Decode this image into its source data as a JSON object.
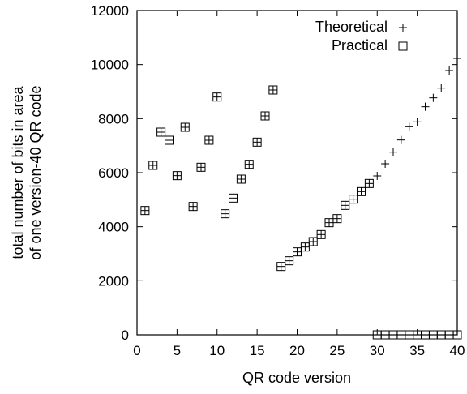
{
  "chart_data": {
    "type": "scatter",
    "xlabel": "QR code version",
    "ylabel_lines": [
      "total number of bits in area",
      "of one version-40 QR code"
    ],
    "xlim": [
      0,
      40
    ],
    "ylim": [
      0,
      12000
    ],
    "x_ticks": [
      0,
      5,
      10,
      15,
      20,
      25,
      30,
      35,
      40
    ],
    "y_ticks": [
      0,
      2000,
      4000,
      6000,
      8000,
      10000,
      12000
    ],
    "x_tick_labels": [
      "0",
      "5",
      "10",
      "15",
      "20",
      "25",
      "30",
      "35",
      "40"
    ],
    "y_tick_labels": [
      "0",
      "2000",
      "4000",
      "6000",
      "8000",
      "10000",
      "12000"
    ],
    "grid": false,
    "legend_position": "top-right",
    "series": [
      {
        "name": "Theoretical",
        "marker": "plus",
        "x": [
          1,
          2,
          3,
          4,
          5,
          6,
          7,
          8,
          9,
          10,
          11,
          12,
          13,
          14,
          15,
          16,
          17,
          18,
          19,
          20,
          21,
          22,
          23,
          24,
          25,
          26,
          27,
          28,
          29,
          30,
          31,
          32,
          33,
          34,
          35,
          36,
          37,
          38,
          39,
          40
        ],
        "y": [
          4600,
          6270,
          7500,
          7200,
          5890,
          7680,
          4750,
          6200,
          7200,
          8800,
          4480,
          5060,
          5760,
          6310,
          7130,
          8100,
          9060,
          2530,
          2740,
          3070,
          3250,
          3450,
          3710,
          4150,
          4300,
          4790,
          5020,
          5300,
          5600,
          5880,
          6330,
          6760,
          7210,
          7700,
          7880,
          8440,
          8770,
          9130,
          9780,
          10230
        ]
      },
      {
        "name": "Practical",
        "marker": "square",
        "x": [
          1,
          2,
          3,
          4,
          5,
          6,
          7,
          8,
          9,
          10,
          11,
          12,
          13,
          14,
          15,
          16,
          17,
          18,
          19,
          20,
          21,
          22,
          23,
          24,
          25,
          26,
          27,
          28,
          29,
          30,
          31,
          32,
          33,
          34,
          35,
          36,
          37,
          38,
          39,
          40
        ],
        "y": [
          4600,
          6270,
          7500,
          7200,
          5890,
          7680,
          4750,
          6200,
          7200,
          8800,
          4480,
          5060,
          5760,
          6310,
          7130,
          8100,
          9060,
          2530,
          2740,
          3070,
          3250,
          3450,
          3710,
          4150,
          4300,
          4790,
          5020,
          5300,
          5600,
          0,
          0,
          0,
          0,
          0,
          0,
          0,
          0,
          0,
          0,
          0
        ]
      }
    ]
  }
}
